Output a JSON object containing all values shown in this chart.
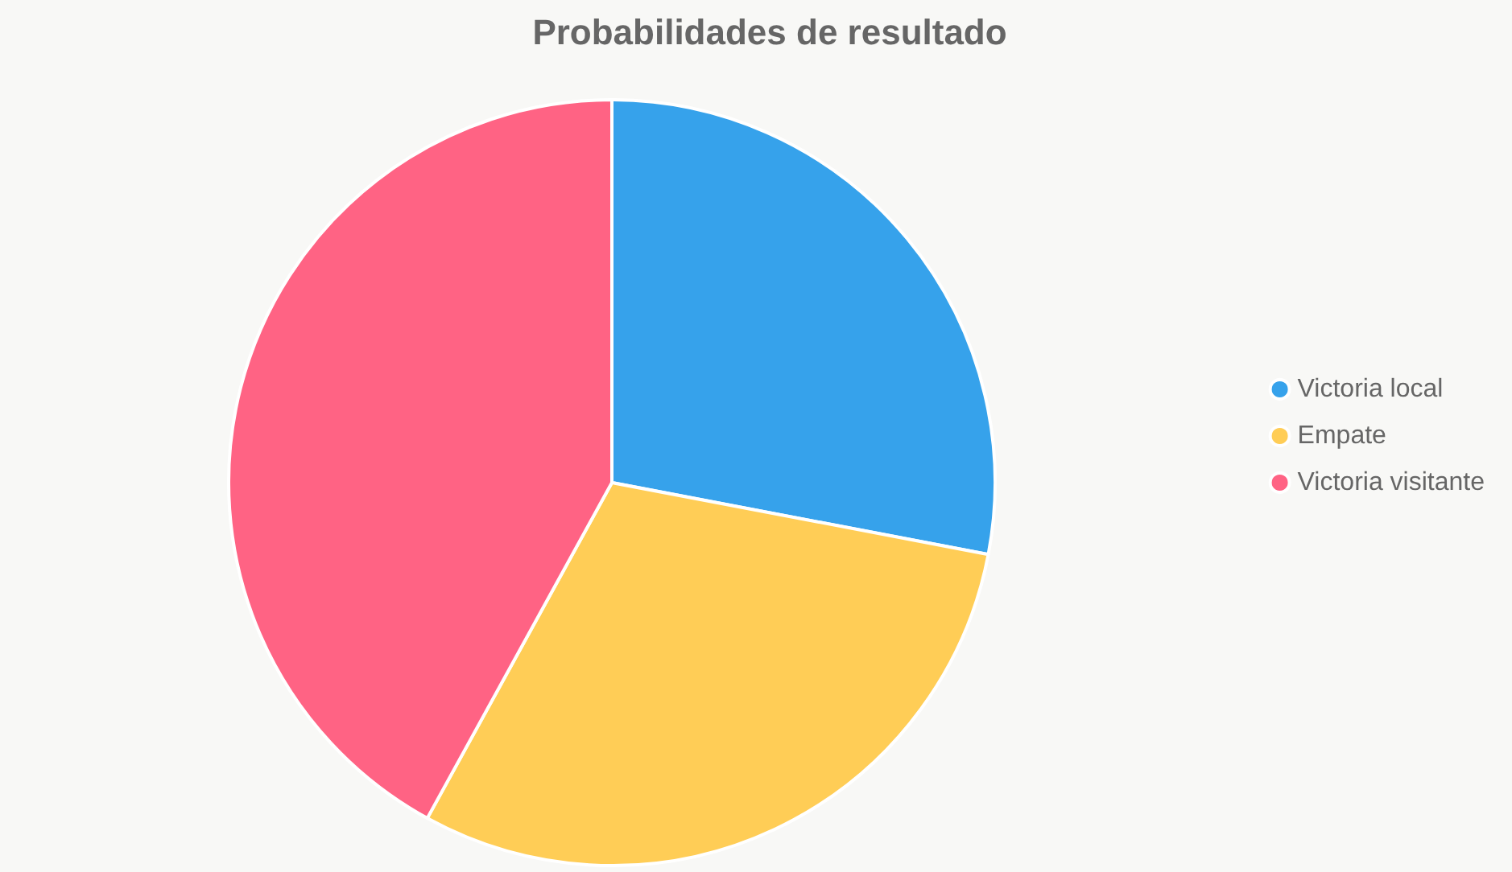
{
  "chart_data": {
    "type": "pie",
    "title": "Probabilidades de resultado",
    "categories": [
      "Victoria local",
      "Empate",
      "Victoria visitante"
    ],
    "values": [
      28,
      30,
      42
    ],
    "colors": [
      "#36a2eb",
      "#ffcd56",
      "#ff6384"
    ],
    "legend": "right"
  }
}
